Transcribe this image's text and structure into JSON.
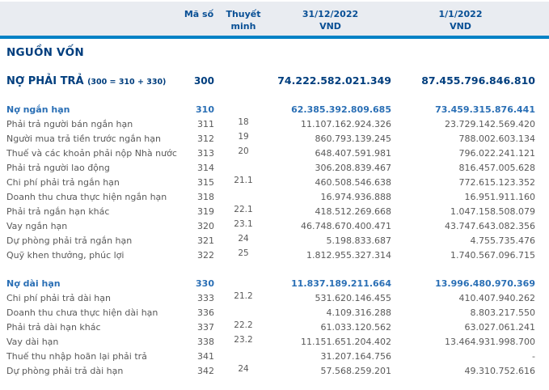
{
  "table": {
    "header": {
      "col_code": "Mã số",
      "col_note_line1": "Thuyết",
      "col_note_line2": "minh",
      "col_2022_date": "31/12/2022",
      "col_2022_unit": "VND",
      "col_2021_date": "1/1/2022",
      "col_2021_unit": "VND"
    },
    "section_title": "NGUỒN VỐN",
    "total_row": {
      "label": "NỢ PHẢI TRẢ",
      "formula": "(300 = 310 + 330)",
      "code": "300",
      "v2022": "74.222.582.021.349",
      "v2021": "87.455.796.846.810"
    },
    "rows": [
      {
        "label": "Nợ ngắn hạn",
        "code": "310",
        "note": "",
        "v2022": "62.385.392.809.685",
        "v2021": "73.459.315.876.441",
        "style": "subtotal"
      },
      {
        "label": "Phải trả người bán ngắn hạn",
        "code": "311",
        "note": "18",
        "v2022": "11.107.162.924.326",
        "v2021": "23.729.142.569.420",
        "style": "item"
      },
      {
        "label": "Người mua trả tiền trước ngắn hạn",
        "code": "312",
        "note": "19",
        "v2022": "860.793.139.245",
        "v2021": "788.002.603.134",
        "style": "item"
      },
      {
        "label": "Thuế và các khoản phải nộp Nhà nước",
        "code": "313",
        "note": "20",
        "v2022": "648.407.591.981",
        "v2021": "796.022.241.121",
        "style": "item"
      },
      {
        "label": "Phải trả người lao động",
        "code": "314",
        "note": "",
        "v2022": "306.208.839.467",
        "v2021": "816.457.005.628",
        "style": "item"
      },
      {
        "label": "Chi phí phải trả ngắn hạn",
        "code": "315",
        "note": "21.1",
        "v2022": "460.508.546.638",
        "v2021": "772.615.123.352",
        "style": "item"
      },
      {
        "label": "Doanh thu chưa thực hiện ngắn hạn",
        "code": "318",
        "note": "",
        "v2022": "16.974.936.888",
        "v2021": "16.951.911.160",
        "style": "item"
      },
      {
        "label": "Phải trả ngắn hạn khác",
        "code": "319",
        "note": "22.1",
        "v2022": "418.512.269.668",
        "v2021": "1.047.158.508.079",
        "style": "item"
      },
      {
        "label": "Vay ngắn hạn",
        "code": "320",
        "note": "23.1",
        "v2022": "46.748.670.400.471",
        "v2021": "43.747.643.082.356",
        "style": "item"
      },
      {
        "label": "Dự phòng phải trả ngắn hạn",
        "code": "321",
        "note": "24",
        "v2022": "5.198.833.687",
        "v2021": "4.755.735.476",
        "style": "item"
      },
      {
        "label": "Quỹ khen thưởng, phúc lợi",
        "code": "322",
        "note": "25",
        "v2022": "1.812.955.327.314",
        "v2021": "1.740.567.096.715",
        "style": "item"
      },
      {
        "label": "Nợ dài hạn",
        "code": "330",
        "note": "",
        "v2022": "11.837.189.211.664",
        "v2021": "13.996.480.970.369",
        "style": "subtotal"
      },
      {
        "label": "Chi phí phải trả dài hạn",
        "code": "333",
        "note": "21.2",
        "v2022": "531.620.146.455",
        "v2021": "410.407.940.262",
        "style": "item"
      },
      {
        "label": "Doanh thu chưa thực hiện dài hạn",
        "code": "336",
        "note": "",
        "v2022": "4.109.316.288",
        "v2021": "8.803.217.550",
        "style": "item"
      },
      {
        "label": "Phải trả dài hạn khác",
        "code": "337",
        "note": "22.2",
        "v2022": "61.033.120.562",
        "v2021": "63.027.061.241",
        "style": "item"
      },
      {
        "label": "Vay dài hạn",
        "code": "338",
        "note": "23.2",
        "v2022": "11.151.651.204.402",
        "v2021": "13.464.931.998.700",
        "style": "item"
      },
      {
        "label": "Thuế thu nhập hoãn lại phải trả",
        "code": "341",
        "note": "",
        "v2022": "31.207.164.756",
        "v2021": "-",
        "style": "item"
      },
      {
        "label": "Dự phòng phải trả dài hạn",
        "code": "342",
        "note": "24",
        "v2022": "57.568.259.201",
        "v2021": "49.310.752.616",
        "style": "item"
      }
    ]
  },
  "colors": {
    "header_bg": "#e9ecf1",
    "accent_line": "#0082c6",
    "header_text": "#084f95",
    "section_text": "#003e7e",
    "subtotal_text": "#2a6fb5",
    "body_text": "#595959"
  }
}
